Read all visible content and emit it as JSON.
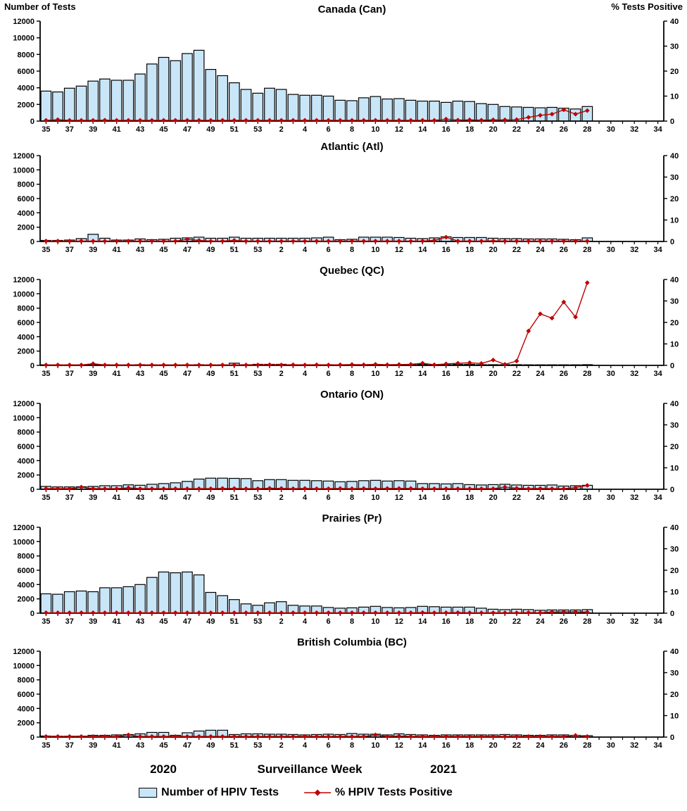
{
  "header": {
    "left_axis_title": "Number of Tests",
    "right_axis_title": "% Tests Positive"
  },
  "footer": {
    "year_left": "2020",
    "xlabel": "Surveillance Week",
    "year_right": "2021",
    "legend_bar_label": "Number of HPIV Tests",
    "legend_line_label": "% HPIV Tests Positive"
  },
  "colors": {
    "bar_fill": "#C9E6F8",
    "bar_stroke": "#000000",
    "line": "#C00000",
    "axis": "#000000",
    "text": "#000000"
  },
  "chart_data": {
    "type": "bar+line",
    "x_axis": {
      "label": "Surveillance Week",
      "tick_labels": [
        "35",
        "37",
        "39",
        "41",
        "43",
        "45",
        "47",
        "49",
        "51",
        "53",
        "2",
        "4",
        "6",
        "8",
        "10",
        "12",
        "14",
        "16",
        "18",
        "20",
        "22",
        "24",
        "26",
        "28",
        "30",
        "32",
        "34"
      ],
      "n_slots": 53,
      "data_weeks": [
        35,
        36,
        37,
        38,
        39,
        40,
        41,
        42,
        43,
        44,
        45,
        46,
        47,
        48,
        49,
        50,
        51,
        52,
        53,
        1,
        2,
        3,
        4,
        5,
        6,
        7,
        8,
        9,
        10,
        11,
        12,
        13,
        14,
        15,
        16,
        17,
        18,
        19,
        20,
        21,
        22,
        23,
        24,
        25,
        26,
        27,
        28
      ]
    },
    "left_axis": {
      "label": "Number of Tests",
      "ticks": [
        0,
        2000,
        4000,
        6000,
        8000,
        10000,
        12000
      ],
      "range": [
        0,
        12000
      ]
    },
    "right_axis": {
      "label": "% Tests Positive",
      "ticks": [
        0,
        10,
        20,
        30,
        40
      ],
      "range": [
        0,
        40
      ]
    },
    "legend_position": "bottom",
    "panels": [
      {
        "title": "Canada (Can)",
        "tests": [
          3600,
          3500,
          3950,
          4200,
          4800,
          5050,
          4900,
          4900,
          5650,
          6850,
          7650,
          7250,
          8100,
          8500,
          6200,
          5450,
          4600,
          3800,
          3350,
          3950,
          3800,
          3200,
          3100,
          3100,
          3000,
          2500,
          2450,
          2800,
          2950,
          2650,
          2700,
          2500,
          2400,
          2400,
          2250,
          2400,
          2350,
          2100,
          2000,
          1750,
          1700,
          1650,
          1600,
          1650,
          1550,
          1450,
          1750
        ],
        "pct_positive": [
          0.3,
          0.6,
          0.3,
          0.3,
          0.3,
          0.4,
          0.3,
          0.3,
          0.3,
          0.3,
          0.3,
          0.3,
          0.3,
          0.3,
          0.3,
          0.3,
          0.3,
          0.3,
          0.3,
          0.3,
          0.3,
          0.3,
          0.3,
          0.3,
          0.3,
          0.3,
          0.3,
          0.3,
          0.3,
          0.3,
          0.3,
          0.3,
          0.3,
          0.3,
          0.8,
          0.4,
          0.5,
          0.4,
          0.5,
          0.5,
          0.6,
          1.5,
          2.3,
          2.8,
          4.5,
          2.8,
          4.2
        ]
      },
      {
        "title": "Atlantic (Atl)",
        "tests": [
          150,
          150,
          200,
          400,
          1000,
          450,
          200,
          200,
          350,
          250,
          300,
          450,
          500,
          600,
          450,
          450,
          600,
          450,
          450,
          450,
          450,
          450,
          450,
          500,
          600,
          250,
          300,
          600,
          600,
          600,
          550,
          450,
          400,
          500,
          650,
          550,
          550,
          550,
          450,
          400,
          400,
          350,
          350,
          350,
          300,
          250,
          500
        ],
        "pct_positive": [
          0.2,
          0.2,
          0.2,
          0.2,
          0.2,
          0.2,
          0.2,
          0.2,
          0.2,
          0.2,
          0.2,
          0.2,
          1.0,
          0.5,
          0.2,
          0.2,
          0.5,
          0.2,
          0.2,
          0.2,
          0.2,
          0.2,
          0.2,
          0.2,
          0.2,
          0.2,
          0.2,
          0.2,
          0.2,
          0.2,
          0.2,
          0.2,
          0.2,
          0.5,
          2.0,
          0.2,
          0.2,
          0.2,
          0.3,
          0.2,
          0.2,
          0.2,
          0.2,
          0.2,
          0.2,
          0.2,
          0.2
        ]
      },
      {
        "title": "Quebec (QC)",
        "tests": [
          80,
          80,
          80,
          80,
          150,
          100,
          80,
          80,
          100,
          80,
          80,
          80,
          80,
          100,
          80,
          80,
          300,
          100,
          150,
          150,
          150,
          100,
          100,
          100,
          100,
          80,
          80,
          100,
          100,
          100,
          100,
          100,
          150,
          100,
          100,
          150,
          150,
          100,
          100,
          100,
          100,
          80,
          80,
          80,
          80,
          80,
          100
        ],
        "pct_positive": [
          0.2,
          0.2,
          0.2,
          0.2,
          0.8,
          0.2,
          0.2,
          0.2,
          0.2,
          0.2,
          0.2,
          0.2,
          0.2,
          0.2,
          0.2,
          0.2,
          0.2,
          0.2,
          0.2,
          0.3,
          0.2,
          0.3,
          0.2,
          0.3,
          0.2,
          0.3,
          0.4,
          0.3,
          0.5,
          0.3,
          0.4,
          0.5,
          1.0,
          0.3,
          0.7,
          1.0,
          1.2,
          0.9,
          2.5,
          0.5,
          2.0,
          16.0,
          24.0,
          22.0,
          29.5,
          22.5,
          38.5
        ]
      },
      {
        "title": "Ontario (ON)",
        "tests": [
          400,
          330,
          330,
          350,
          400,
          500,
          500,
          620,
          560,
          700,
          800,
          900,
          1100,
          1430,
          1550,
          1550,
          1520,
          1500,
          1200,
          1350,
          1350,
          1250,
          1250,
          1200,
          1150,
          1050,
          1100,
          1200,
          1250,
          1150,
          1200,
          1150,
          800,
          800,
          750,
          800,
          650,
          600,
          650,
          700,
          600,
          550,
          550,
          600,
          450,
          500,
          550
        ],
        "pct_positive": [
          0.3,
          0.3,
          0.3,
          1.0,
          0.3,
          0.3,
          0.3,
          0.7,
          0.3,
          0.3,
          0.3,
          0.3,
          0.3,
          0.3,
          0.3,
          0.4,
          0.4,
          0.3,
          0.3,
          0.5,
          0.4,
          0.3,
          0.4,
          0.3,
          0.3,
          0.4,
          0.3,
          0.4,
          0.3,
          0.4,
          0.4,
          0.4,
          0.3,
          0.3,
          0.3,
          0.3,
          0.3,
          0.3,
          0.3,
          1.0,
          0.5,
          0.3,
          0.4,
          0.3,
          0.3,
          0.8,
          1.8
        ]
      },
      {
        "title": "Prairies (Pr)",
        "tests": [
          2700,
          2650,
          3000,
          3100,
          3000,
          3550,
          3550,
          3700,
          4000,
          5000,
          5750,
          5650,
          5750,
          5350,
          2900,
          2450,
          1900,
          1300,
          1100,
          1450,
          1600,
          1100,
          1000,
          1000,
          800,
          700,
          750,
          850,
          950,
          800,
          750,
          800,
          950,
          900,
          850,
          850,
          850,
          700,
          550,
          500,
          550,
          500,
          400,
          450,
          450,
          450,
          500
        ],
        "pct_positive": [
          0.2,
          0.2,
          0.2,
          0.2,
          0.2,
          0.2,
          0.2,
          0.2,
          0.2,
          0.2,
          0.2,
          0.2,
          0.2,
          0.2,
          0.2,
          0.2,
          0.2,
          0.2,
          0.2,
          0.2,
          0.2,
          0.2,
          0.2,
          0.2,
          0.2,
          0.2,
          0.2,
          0.2,
          0.2,
          0.2,
          0.2,
          0.2,
          0.3,
          0.2,
          0.2,
          0.3,
          0.2,
          0.2,
          0.2,
          0.2,
          0.2,
          0.3,
          0.2,
          0.6,
          0.7,
          0.7,
          0.5
        ]
      },
      {
        "title": "British Columbia (BC)",
        "tests": [
          150,
          130,
          130,
          140,
          250,
          250,
          300,
          350,
          450,
          650,
          650,
          250,
          600,
          850,
          950,
          950,
          350,
          450,
          450,
          400,
          400,
          350,
          300,
          350,
          400,
          350,
          500,
          400,
          400,
          300,
          450,
          350,
          300,
          250,
          300,
          300,
          300,
          300,
          300,
          350,
          300,
          250,
          250,
          300,
          300,
          250,
          200
        ],
        "pct_positive": [
          0.3,
          0.3,
          0.3,
          0.3,
          0.3,
          0.3,
          0.3,
          1.0,
          0.3,
          0.3,
          0.3,
          0.3,
          0.3,
          0.3,
          0.3,
          0.3,
          0.3,
          0.3,
          0.3,
          0.3,
          0.3,
          0.3,
          0.3,
          0.3,
          0.3,
          0.3,
          0.3,
          0.3,
          1.0,
          0.3,
          0.5,
          0.3,
          0.3,
          0.3,
          0.3,
          0.3,
          0.3,
          0.3,
          0.3,
          0.3,
          0.3,
          0.3,
          0.3,
          0.3,
          0.3,
          0.8,
          0.3
        ]
      }
    ]
  }
}
